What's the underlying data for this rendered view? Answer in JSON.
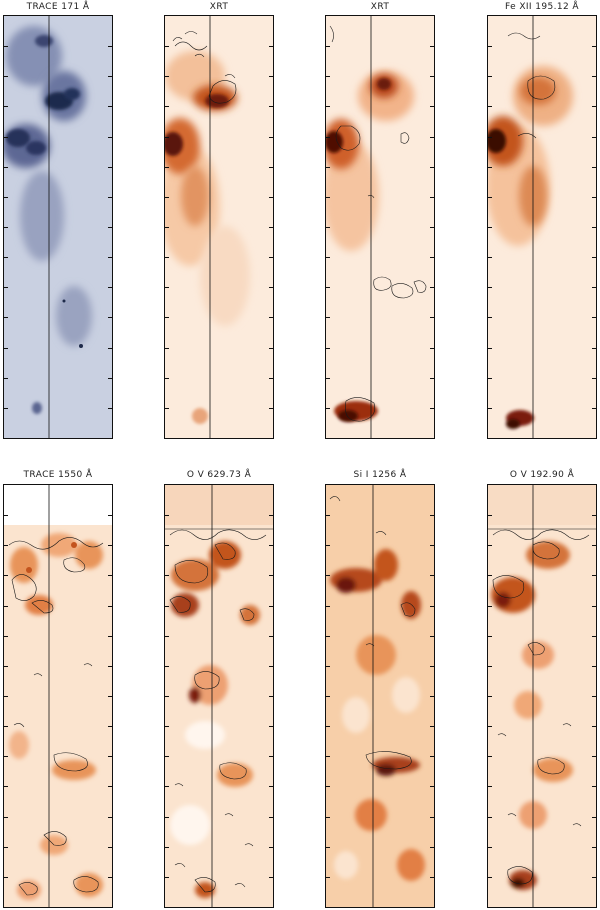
{
  "figure": {
    "panels": [
      {
        "id": "trace171",
        "title": "TRACE 171 Å",
        "palette": "blue"
      },
      {
        "id": "xrt1",
        "title": "XRT",
        "palette": "orange"
      },
      {
        "id": "xrt2",
        "title": "XRT",
        "palette": "orange"
      },
      {
        "id": "fe12",
        "title": "Fe XII 195.12 Å",
        "palette": "orange"
      },
      {
        "id": "trace1550",
        "title": "TRACE 1550 Å",
        "palette": "orange"
      },
      {
        "id": "ov629",
        "title": "O V 629.73 Å",
        "palette": "orange"
      },
      {
        "id": "si1256",
        "title": "Si I 1256 Å",
        "palette": "orange"
      },
      {
        "id": "ov192",
        "title": "O V 192.90 Å",
        "palette": "orange"
      }
    ],
    "colors": {
      "blue_background": "#c8cfe0",
      "blue_feature": "#1e2a4a",
      "orange_background": "#fbe6d3",
      "orange_mid": "#e8945a",
      "orange_dark": "#7a1c0c",
      "contour": "#1a1a1a"
    }
  }
}
